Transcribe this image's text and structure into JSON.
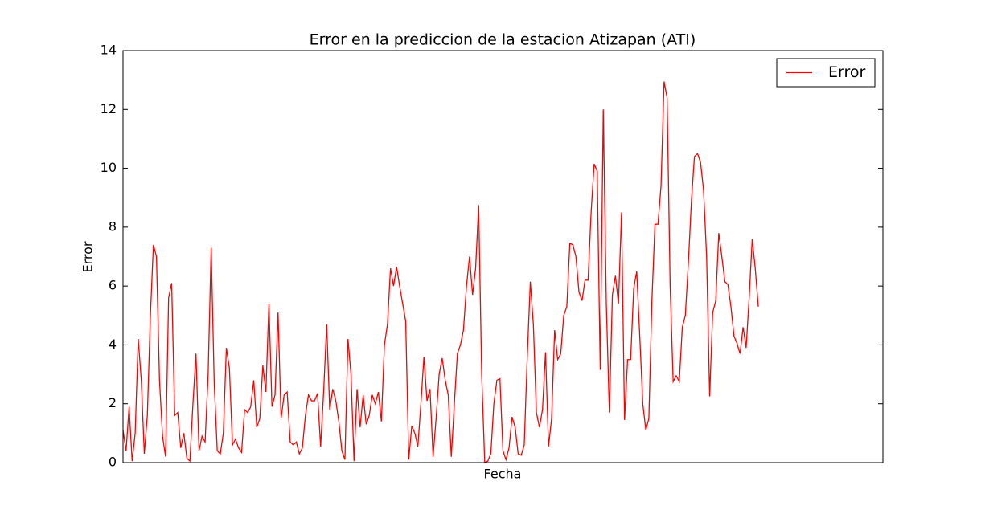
{
  "chart_data": {
    "type": "line",
    "title": "Error en la prediccion de la estacion Atizapan (ATI)",
    "xlabel": "Fecha",
    "ylabel": "Error",
    "xlim": [
      0,
      250
    ],
    "ylim": [
      0,
      14
    ],
    "yticks": [
      0,
      2,
      4,
      6,
      8,
      10,
      12,
      14
    ],
    "grid": false,
    "legend": "upper right",
    "series": [
      {
        "name": "Error",
        "color": "#ff0000",
        "values": [
          1.1,
          0.4,
          1.9,
          0.05,
          1.0,
          4.2,
          2.8,
          0.3,
          1.6,
          5.0,
          7.4,
          7.0,
          2.8,
          0.9,
          0.2,
          5.6,
          6.1,
          1.6,
          1.7,
          0.5,
          1.0,
          0.15,
          0.05,
          2.0,
          3.7,
          0.4,
          0.9,
          0.7,
          3.0,
          7.3,
          2.7,
          0.4,
          0.3,
          1.0,
          3.9,
          3.2,
          0.6,
          0.8,
          0.5,
          0.35,
          1.8,
          1.7,
          1.9,
          2.8,
          1.2,
          1.5,
          3.3,
          2.4,
          5.4,
          1.9,
          2.3,
          5.1,
          1.5,
          2.3,
          2.4,
          0.7,
          0.6,
          0.7,
          0.3,
          0.5,
          1.6,
          2.3,
          2.1,
          2.1,
          2.35,
          0.55,
          2.4,
          4.7,
          1.8,
          2.5,
          2.1,
          1.4,
          0.4,
          0.1,
          4.2,
          3.0,
          0.05,
          2.5,
          1.2,
          2.3,
          1.3,
          1.6,
          2.3,
          2.0,
          2.4,
          1.4,
          4.0,
          4.7,
          6.6,
          6.0,
          6.65,
          6.0,
          5.4,
          4.8,
          0.1,
          1.25,
          1.0,
          0.55,
          2.0,
          3.6,
          2.1,
          2.5,
          0.2,
          1.5,
          3.0,
          3.55,
          2.8,
          2.3,
          0.2,
          2.0,
          3.7,
          4.0,
          4.5,
          6.0,
          7.0,
          5.7,
          6.6,
          8.75,
          3.0,
          0.0,
          0.05,
          0.3,
          2.0,
          2.8,
          2.85,
          0.4,
          0.1,
          0.5,
          1.55,
          1.2,
          0.3,
          0.25,
          0.6,
          3.6,
          6.15,
          4.7,
          1.7,
          1.2,
          1.8,
          3.75,
          0.55,
          1.5,
          4.5,
          3.5,
          3.7,
          5.0,
          5.3,
          7.45,
          7.4,
          7.0,
          5.8,
          5.5,
          6.2,
          6.2,
          8.5,
          10.15,
          9.9,
          3.15,
          12.0,
          5.4,
          1.7,
          5.7,
          6.35,
          5.4,
          8.5,
          1.45,
          3.5,
          3.5,
          5.9,
          6.5,
          4.3,
          2.0,
          1.1,
          1.5,
          5.5,
          8.1,
          8.1,
          9.4,
          12.95,
          12.4,
          6.0,
          2.75,
          2.95,
          2.75,
          4.6,
          5.0,
          6.8,
          8.9,
          10.4,
          10.5,
          10.2,
          9.25,
          7.0,
          2.25,
          5.1,
          5.5,
          7.8,
          7.0,
          6.15,
          6.05,
          5.3,
          4.3,
          4.05,
          3.7,
          4.6,
          3.9,
          5.6,
          7.6,
          6.6,
          5.3
        ]
      }
    ]
  }
}
